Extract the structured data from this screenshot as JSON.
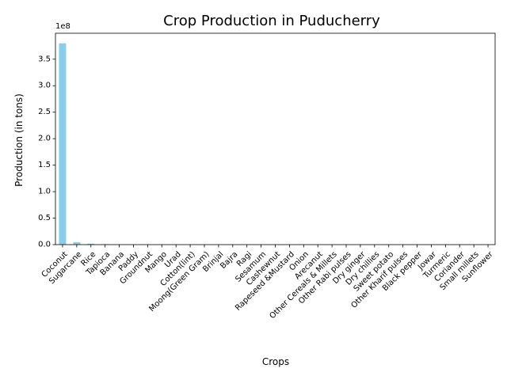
{
  "chart_data": {
    "type": "bar",
    "title": "Crop Production in Puducherry",
    "xlabel": "Crops",
    "ylabel": "Production (in tons)",
    "offset_label": "1e8",
    "categories": [
      "Coconut",
      "Sugarcane",
      "Rice",
      "Tapioca",
      "Banana",
      "Paddy",
      "Groundnut",
      "Mango",
      "Urad",
      "Cotton(lint)",
      "Moong(Green Gram)",
      "Brinjal",
      "Bajra",
      "Ragi",
      "Sesamum",
      "Cashewnut",
      "Rapeseed &Mustard",
      "Onion",
      "Arecanut",
      "Other Cereals & Millets",
      "Other  Rabi pulses",
      "Dry ginger",
      "Dry chillies",
      "Sweet potato",
      "Other Kharif pulses",
      "Black pepper",
      "Jowar",
      "Turmeric",
      "Coriander",
      "Small millets",
      "Sunflower"
    ],
    "values": [
      380000000,
      4500000,
      1800000,
      900000,
      500000,
      300000,
      200000,
      150000,
      100000,
      80000,
      60000,
      50000,
      40000,
      30000,
      25000,
      20000,
      15000,
      12000,
      10000,
      8000,
      6000,
      5000,
      4000,
      3000,
      2000,
      1500,
      1000,
      800,
      500,
      300,
      100
    ],
    "yticks": [
      0,
      50000000,
      100000000,
      150000000,
      200000000,
      250000000,
      300000000,
      350000000
    ],
    "ytick_labels": [
      "0.0",
      "0.5",
      "1.0",
      "1.5",
      "2.0",
      "2.5",
      "3.0",
      "3.5"
    ],
    "ylim": [
      0,
      399000000
    ],
    "bar_color": "#87ceeb",
    "grid": false,
    "legend": "none"
  }
}
